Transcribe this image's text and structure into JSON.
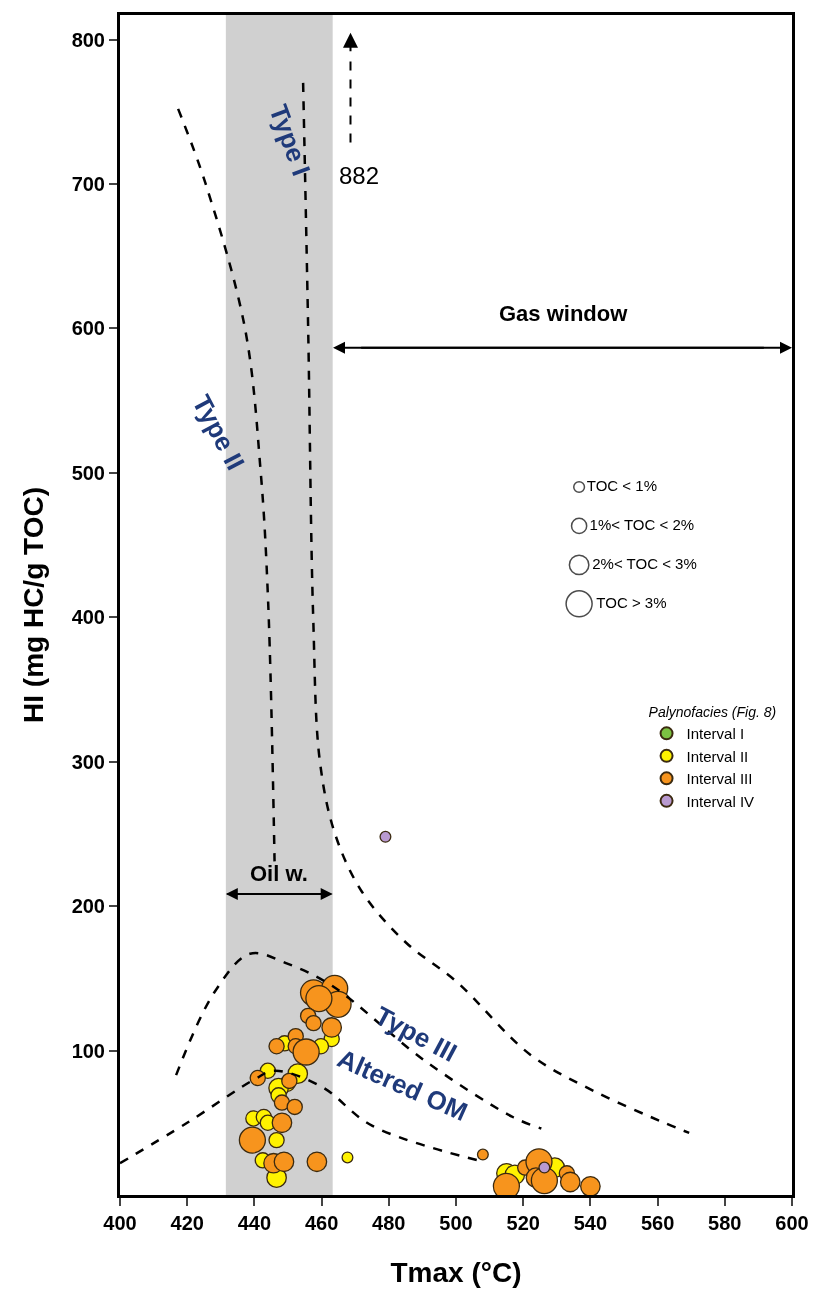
{
  "chart_data": {
    "type": "bubble",
    "xlabel": "Tmax (°C)",
    "ylabel": "HI (mg HC/g TOC)",
    "xlim": [
      400,
      600
    ],
    "ylim": [
      0,
      817
    ],
    "xticks": [
      400,
      420,
      440,
      460,
      480,
      500,
      520,
      540,
      560,
      580,
      600
    ],
    "yticks": [
      100,
      200,
      300,
      400,
      500,
      600,
      700,
      800
    ],
    "grid": false,
    "legend": "right",
    "legend_title": "Palynofacies (Fig. 8)",
    "size_legend": [
      {
        "value": 0.17,
        "label": "TOC < 1%"
      },
      {
        "value": 0.34,
        "label": "1%< TOC < 2%"
      },
      {
        "value": 0.56,
        "label": "2%< TOC < 3%"
      },
      {
        "value": 1,
        "label": "TOC > 3%"
      }
    ],
    "bands": [
      {
        "axis": "x",
        "from": 431.5,
        "to": 463.3,
        "label": "Oil w.",
        "color": "#d0d0d0"
      }
    ],
    "annotations": [
      "Type I",
      "Type II",
      "Type III",
      "Altered OM",
      "882",
      "Gas window"
    ],
    "series": [
      {
        "name": "Interval I",
        "marker": "circle",
        "color": "#7cc242"
      },
      {
        "name": "Interval II",
        "marker": "circle",
        "color": "#fff200",
        "x": [
          463,
          449,
          459.8,
          444,
          452.9,
          449.8,
          447.2,
          447.2,
          439.7,
          442.8,
          444,
          446.6,
          442.5,
          446.6,
          467.7,
          515,
          517.5,
          529.4
        ],
        "values": [
          108,
          105,
          103,
          86,
          84,
          77,
          74,
          69,
          53,
          54,
          50,
          38,
          24,
          12,
          26,
          15,
          14,
          19
        ],
        "sizes": [
          0.34,
          0.34,
          0.34,
          0.34,
          0.56,
          0.34,
          0.56,
          0.34,
          0.34,
          0.34,
          0.34,
          0.34,
          0.34,
          0.56,
          0.17,
          0.56,
          0.56,
          0.56
        ]
      },
      {
        "name": "Interval III",
        "marker": "circle",
        "color": "#f7941d",
        "x": [
          457.6,
          463.9,
          464.9,
          459.2,
          456,
          457.6,
          463,
          452.3,
          446.6,
          452.3,
          455.4,
          441,
          450.4,
          448.2,
          452,
          448.2,
          439.4,
          445.7,
          448.8,
          458.6,
          508,
          515,
          520.6,
          524.7,
          523.8,
          526.3,
          533,
          534,
          540
        ],
        "values": [
          140,
          143,
          132,
          136,
          124,
          119,
          116,
          110,
          103,
          103,
          99,
          81,
          79,
          64,
          61,
          50,
          38,
          22,
          23,
          23,
          28,
          6,
          19,
          23,
          12,
          10,
          15,
          9,
          6
        ],
        "sizes": [
          1,
          1,
          1,
          1,
          0.34,
          0.34,
          0.56,
          0.34,
          0.34,
          0.34,
          1,
          0.34,
          0.34,
          0.34,
          0.34,
          0.56,
          1,
          0.56,
          0.56,
          0.56,
          0.17,
          1,
          0.34,
          1,
          0.56,
          1,
          0.34,
          0.56,
          0.56
        ]
      },
      {
        "name": "Interval IV",
        "marker": "circle",
        "color": "#b99ad0",
        "x": [
          479,
          526.3
        ],
        "values": [
          248,
          19
        ],
        "sizes": [
          0.17,
          0.17
        ]
      },
      {
        "type": "line",
        "color": "#000000",
        "line_style": "dashed",
        "x": [
          417.3,
          425.5,
          437.2,
          441.9,
          444.1,
          446
        ],
        "values": [
          752,
          700,
          600,
          500,
          410,
          231
        ]
      },
      {
        "type": "line",
        "color": "#000000",
        "line_style": "dashed",
        "x": [
          454.5,
          456,
          457.5,
          459.5,
          464,
          472,
          485,
          500,
          522.2,
          541,
          562,
          569.4
        ],
        "values": [
          770,
          600,
          400,
          300,
          250,
          210,
          175,
          148,
          97,
          72,
          50,
          43
        ]
      },
      {
        "type": "line",
        "color": "#000000",
        "line_style": "dashed",
        "x": [
          416.7,
          428,
          438.7,
          450,
          463,
          490.7,
          516.9,
          525.4
        ],
        "values": [
          83,
          140,
          167,
          160,
          145,
          93,
          54,
          46
        ]
      },
      {
        "type": "line",
        "color": "#000000",
        "line_style": "dashed",
        "x": [
          400,
          420,
          440,
          446,
          460,
          475,
          506.5
        ],
        "values": [
          22,
          50,
          80,
          86,
          75,
          48,
          24
        ]
      }
    ]
  }
}
